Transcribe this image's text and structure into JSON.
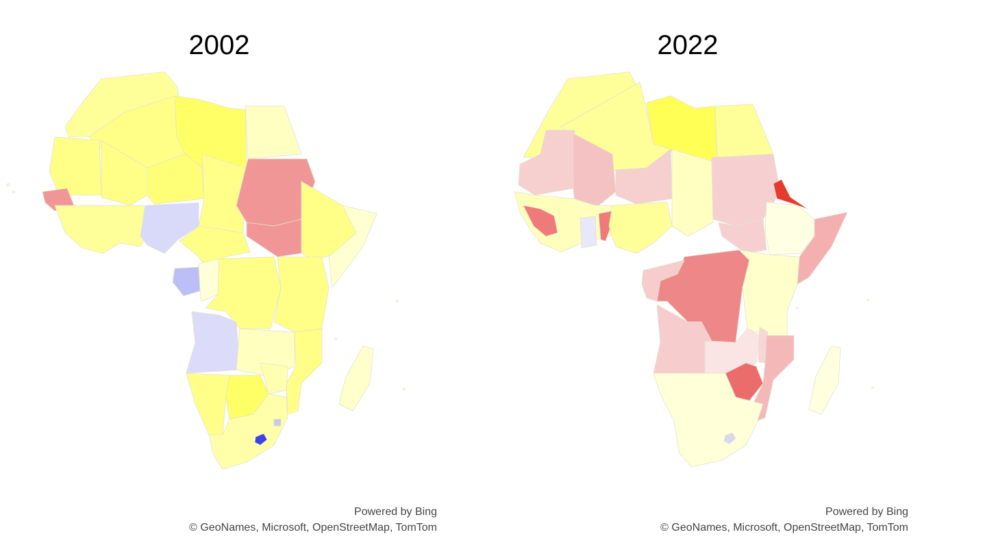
{
  "maps": [
    {
      "title": "2002",
      "attribution": {
        "line1": "Powered by Bing",
        "line2": "© GeoNames, Microsoft, OpenStreetMap, TomTom"
      },
      "regions": [
        {
          "name": "morocco",
          "color": "#ffff99"
        },
        {
          "name": "algeria",
          "color": "#ffff88"
        },
        {
          "name": "libya",
          "color": "#ffff66"
        },
        {
          "name": "egypt",
          "color": "#ffffc2"
        },
        {
          "name": "mauritania",
          "color": "#ffff88"
        },
        {
          "name": "mali",
          "color": "#ffff88"
        },
        {
          "name": "niger",
          "color": "#ffff77"
        },
        {
          "name": "chad",
          "color": "#ffff8a"
        },
        {
          "name": "sudan",
          "color": "#f19696"
        },
        {
          "name": "south-sudan",
          "color": "#f19696"
        },
        {
          "name": "senegal",
          "color": "#f19696"
        },
        {
          "name": "west-coast",
          "color": "#ffff99"
        },
        {
          "name": "nigeria",
          "color": "#d9dafa"
        },
        {
          "name": "cameroon-car",
          "color": "#ffff88"
        },
        {
          "name": "ethiopia-horn",
          "color": "#ffff88"
        },
        {
          "name": "somalia",
          "color": "#ffffd0"
        },
        {
          "name": "gabon",
          "color": "#bcbff7"
        },
        {
          "name": "congo",
          "color": "#ffffd8"
        },
        {
          "name": "drc",
          "color": "#ffff88"
        },
        {
          "name": "east-africa",
          "color": "#ffff88"
        },
        {
          "name": "angola",
          "color": "#dcdcfa"
        },
        {
          "name": "zambia-region",
          "color": "#ffffc0"
        },
        {
          "name": "mozambique",
          "color": "#ffff88"
        },
        {
          "name": "namibia",
          "color": "#ffff88"
        },
        {
          "name": "botswana",
          "color": "#ffff66"
        },
        {
          "name": "south-africa",
          "color": "#ffffaa"
        },
        {
          "name": "zimbabwe",
          "color": "#ffffb0"
        },
        {
          "name": "lesotho",
          "color": "#3b43e6"
        },
        {
          "name": "eswatini",
          "color": "#c8c8e8"
        },
        {
          "name": "madagascar",
          "color": "#ffffcc"
        }
      ]
    },
    {
      "title": "2022",
      "attribution": {
        "line1": "Powered by Bing",
        "line2": "© GeoNames, Microsoft, OpenStreetMap, TomTom"
      },
      "regions": [
        {
          "name": "morocco",
          "color": "#ffff99"
        },
        {
          "name": "algeria",
          "color": "#ffff99"
        },
        {
          "name": "libya",
          "color": "#ffff55"
        },
        {
          "name": "egypt",
          "color": "#ffff99"
        },
        {
          "name": "mauritania",
          "color": "#f6cfcf"
        },
        {
          "name": "mali",
          "color": "#f4c2c2"
        },
        {
          "name": "niger",
          "color": "#f6cfcf"
        },
        {
          "name": "chad",
          "color": "#ffffc2"
        },
        {
          "name": "sudan",
          "color": "#f6d0d0"
        },
        {
          "name": "south-sudan",
          "color": "#f6d0d0"
        },
        {
          "name": "eritrea",
          "color": "#e63a2e"
        },
        {
          "name": "ethiopia",
          "color": "#ffffe4"
        },
        {
          "name": "somalia",
          "color": "#f4b0b0"
        },
        {
          "name": "west-coast",
          "color": "#ffffbb"
        },
        {
          "name": "guinea",
          "color": "#ee7a7a"
        },
        {
          "name": "ghana",
          "color": "#e8e8fa"
        },
        {
          "name": "benin-togo",
          "color": "#ee7a7a"
        },
        {
          "name": "nigeria",
          "color": "#ffff99"
        },
        {
          "name": "drc",
          "color": "#ee8888"
        },
        {
          "name": "congo-gabon",
          "color": "#f6cccc"
        },
        {
          "name": "east-africa",
          "color": "#ffffcc"
        },
        {
          "name": "angola",
          "color": "#f6cccc"
        },
        {
          "name": "zambia",
          "color": "#fae4e4"
        },
        {
          "name": "malawi",
          "color": "#f6d6d6"
        },
        {
          "name": "zimbabwe",
          "color": "#ec6c6c"
        },
        {
          "name": "mozambique",
          "color": "#f4b8b8"
        },
        {
          "name": "southern",
          "color": "#ffffd8"
        },
        {
          "name": "lesotho",
          "color": "#d6d8f0"
        },
        {
          "name": "madagascar",
          "color": "#ffffe0"
        }
      ]
    }
  ]
}
